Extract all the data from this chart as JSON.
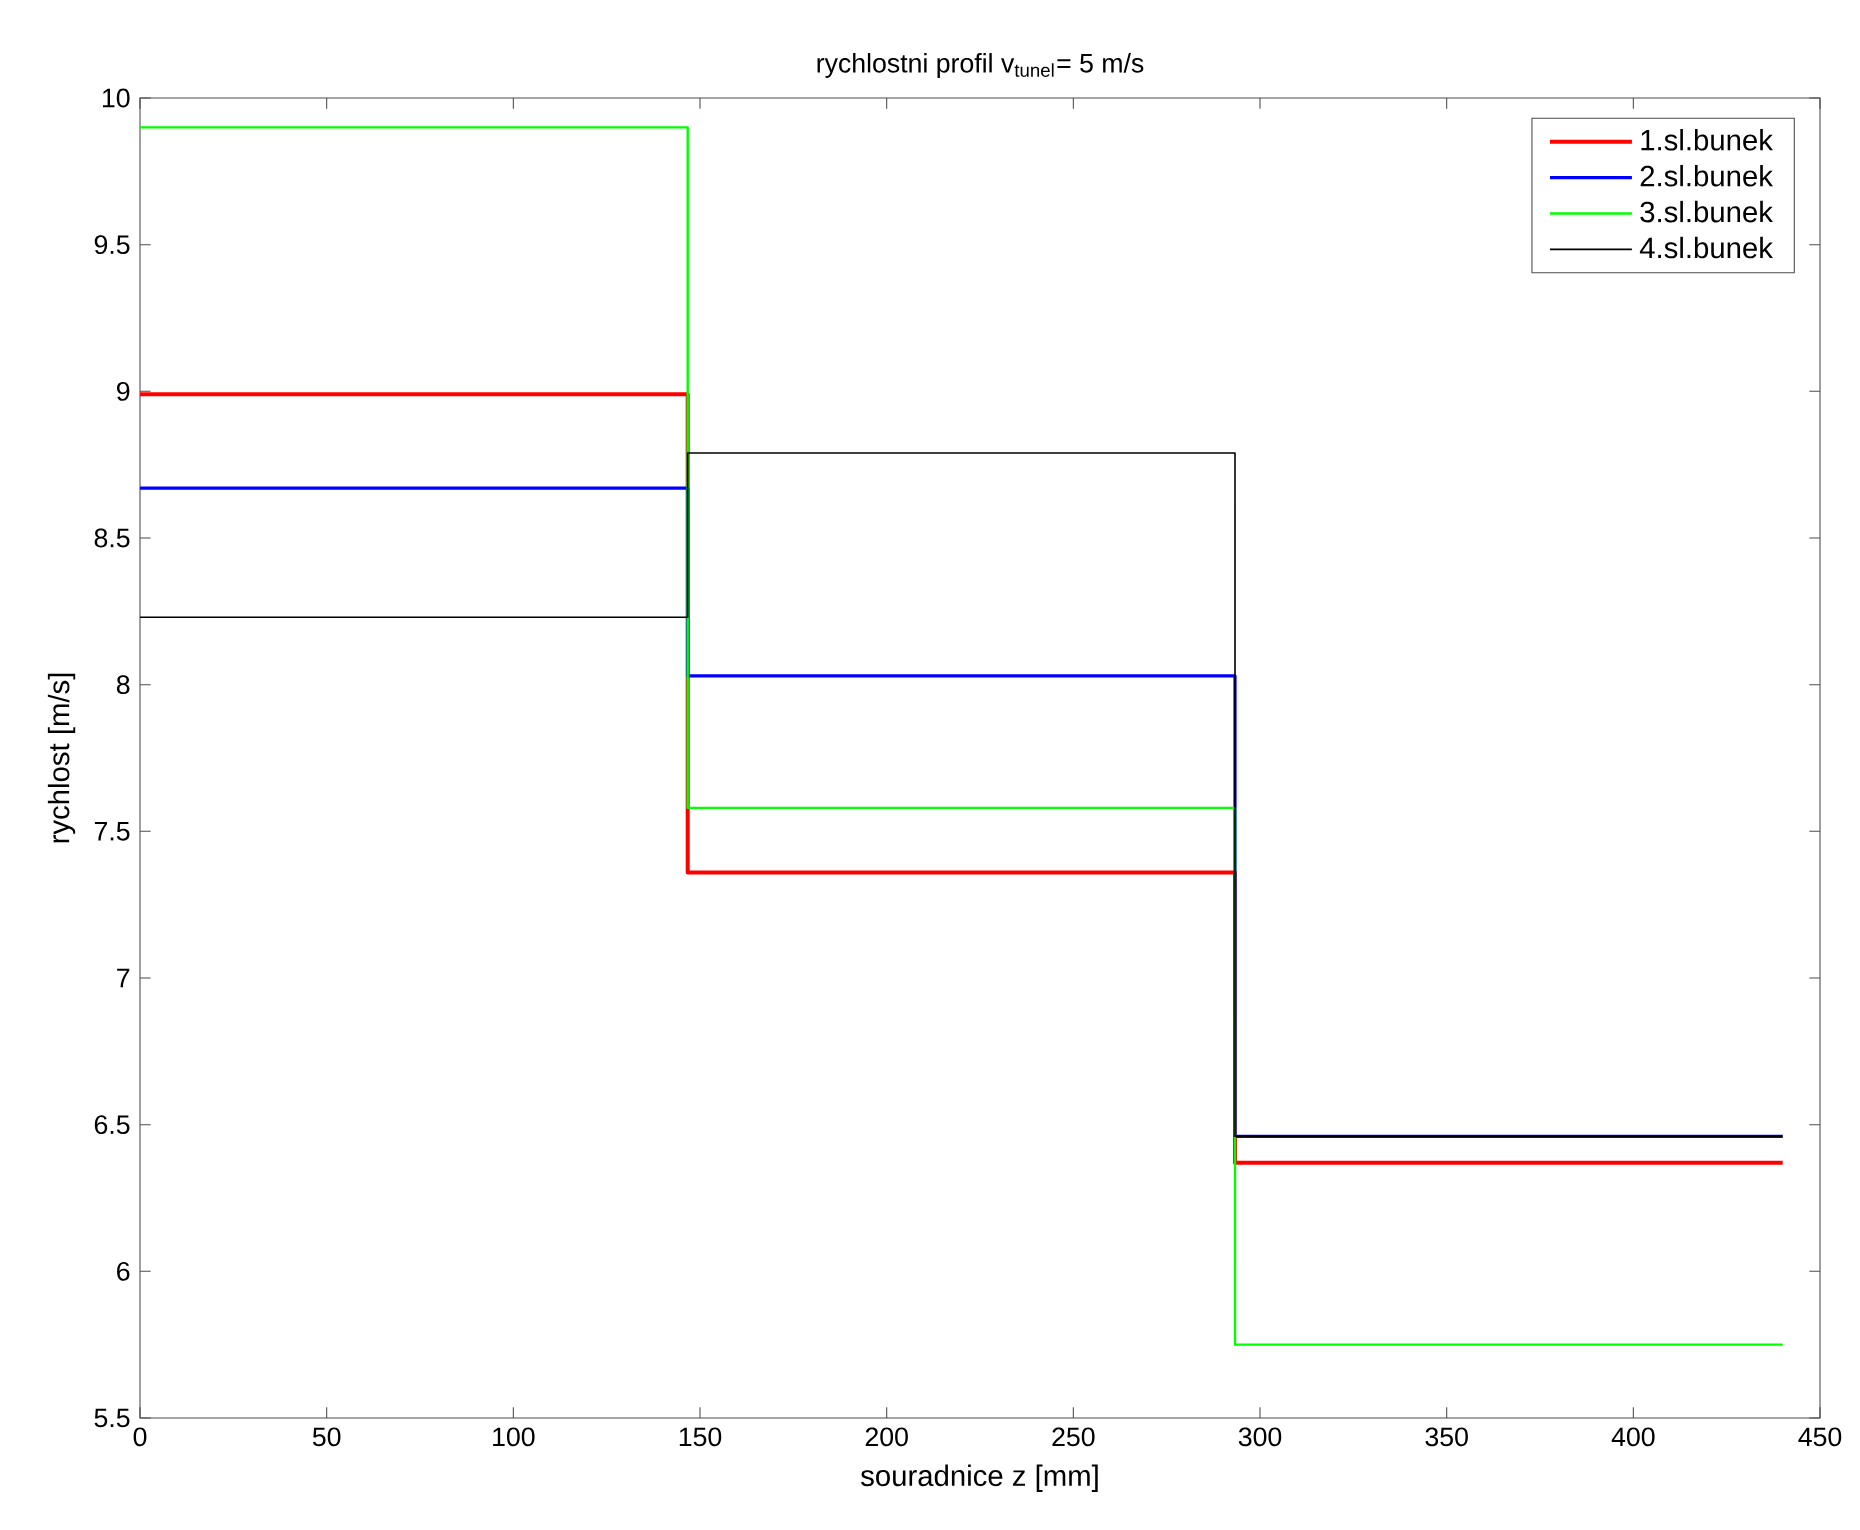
{
  "chart_data": {
    "type": "step",
    "title": "rychlostni profil v$_{tunel}$= 5 m/s",
    "xlabel": "souradnice z [mm]",
    "ylabel": "rychlost [m/s]",
    "x": [
      0,
      146.7,
      293.3,
      440
    ],
    "series": [
      {
        "name": "1.sl.bunek",
        "color": "#ff0000",
        "values": [
          8.99,
          7.36,
          6.37,
          6.37
        ]
      },
      {
        "name": "2.sl.bunek",
        "color": "#0000ff",
        "values": [
          8.67,
          8.03,
          6.46,
          6.46
        ]
      },
      {
        "name": "3.sl.bunek",
        "color": "#00ff00",
        "values": [
          9.9,
          7.58,
          5.75,
          5.75
        ]
      },
      {
        "name": "4.sl.bunek",
        "color": "#000000",
        "values": [
          8.23,
          8.79,
          6.46,
          6.46
        ]
      }
    ],
    "xlim": [
      0,
      450
    ],
    "xticks": [
      0,
      50,
      100,
      150,
      200,
      250,
      300,
      350,
      400,
      450
    ],
    "ylim": [
      5.5,
      10
    ],
    "yticks": [
      5.5,
      6,
      6.5,
      7,
      7.5,
      8,
      8.5,
      9,
      9.5,
      10
    ],
    "grid": false,
    "legend": "top right",
    "marker": "none",
    "line_style": "solid"
  }
}
